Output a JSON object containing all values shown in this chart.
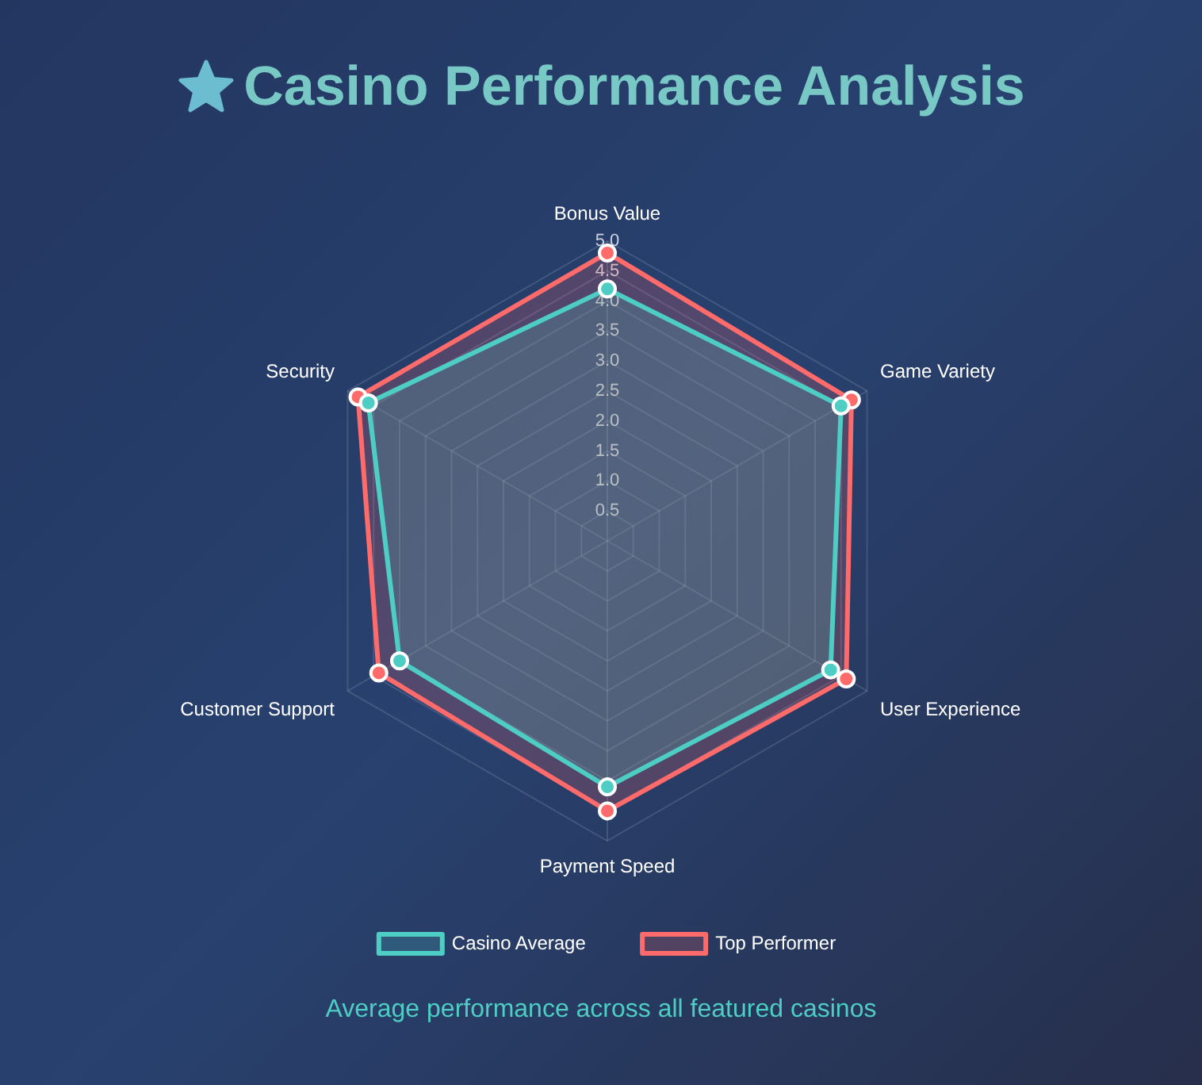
{
  "chart_data": {
    "type": "radar",
    "title": "Casino Performance Analysis",
    "annotations": [
      "Average performance across all featured casinos"
    ],
    "categories": [
      "Bonus Value",
      "Game Variety",
      "User Experience",
      "Payment Speed",
      "Customer Support",
      "Security"
    ],
    "series": [
      {
        "name": "Casino Average",
        "color": "#4ecdc4",
        "values": [
          4.2,
          4.5,
          4.3,
          4.1,
          4.0,
          4.6
        ]
      },
      {
        "name": "Top Performer",
        "color": "#ff6b6b",
        "values": [
          4.8,
          4.7,
          4.6,
          4.5,
          4.4,
          4.8
        ]
      }
    ],
    "ylim": [
      0,
      5
    ],
    "yticks": [
      0.5,
      {
        "value": 1,
        "label": "1.0"
      },
      1.5,
      {
        "value": 2,
        "label": "2.0"
      },
      2.5,
      {
        "value": 3,
        "label": "3.0"
      },
      3.5,
      {
        "value": 4,
        "label": "4.0"
      },
      4.5,
      {
        "value": 5,
        "label": "5.0"
      }
    ],
    "grid": true,
    "legend": "bottom",
    "marker": "circle"
  }
}
